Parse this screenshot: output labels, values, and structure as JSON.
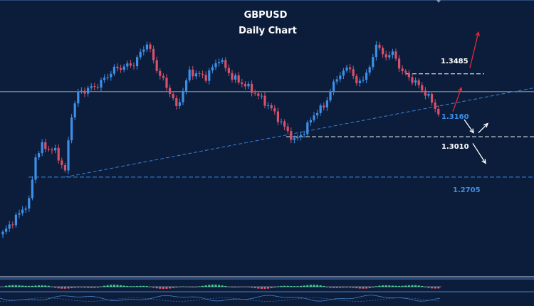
{
  "colors": {
    "background": "#0b1d3a",
    "bull_candle": "#3d8fe8",
    "bear_candle": "#d9506b",
    "trendline": "#3a80d6",
    "level_white": "#ffffff",
    "level_blue": "#3d8fe8",
    "arrow_red": "#e02a3a",
    "arrow_white": "#ffffff",
    "oscillator_green": "#1fd67a",
    "oscillator_red": "#d9506b",
    "panel_line": "#4a7fc8"
  },
  "chart_data": {
    "type": "candlestick",
    "title": "GBPUSD",
    "subtitle": "Daily Chart",
    "ylim": [
      1.2,
      1.4
    ],
    "y_axis_labels_shown": false,
    "levels": [
      {
        "label": "1.3485",
        "value": 1.3485,
        "color": "#ffffff",
        "style": "dashed"
      },
      {
        "label": "1.3160",
        "value": 1.316,
        "color": "#3d8fe8",
        "style": "none"
      },
      {
        "label": "1.3010",
        "value": 1.301,
        "color": "#ffffff",
        "style": "dashed"
      },
      {
        "label": "1.2705",
        "value": 1.2705,
        "color": "#3d8fe8",
        "style": "dashed"
      }
    ],
    "horizontal_reference": {
      "value": 1.335,
      "color": "#c8d0dc"
    },
    "trendline": {
      "from_index": 19,
      "from_value": 1.2705,
      "to_index": 156,
      "to_value": 1.335
    },
    "scenario_arrows": [
      {
        "direction": "up",
        "color": "#e02a3a",
        "from_value": 1.32,
        "to_value": 1.338
      },
      {
        "direction": "up",
        "color": "#e02a3a",
        "from_value": 1.353,
        "to_value": 1.38
      },
      {
        "direction": "down",
        "color": "#ffffff",
        "from_value": 1.314,
        "to_value": 1.304
      },
      {
        "direction": "up",
        "color": "#ffffff",
        "from_value": 1.304,
        "to_value": 1.311
      },
      {
        "direction": "down",
        "color": "#ffffff",
        "from_value": 1.296,
        "to_value": 1.281
      }
    ],
    "close_anchors": [
      [
        0,
        1.228
      ],
      [
        4,
        1.24
      ],
      [
        8,
        1.252
      ],
      [
        10,
        1.286
      ],
      [
        12,
        1.294
      ],
      [
        16,
        1.29
      ],
      [
        19,
        1.275
      ],
      [
        21,
        1.318
      ],
      [
        23,
        1.334
      ],
      [
        29,
        1.34
      ],
      [
        34,
        1.352
      ],
      [
        40,
        1.356
      ],
      [
        44,
        1.372
      ],
      [
        47,
        1.352
      ],
      [
        52,
        1.33
      ],
      [
        53,
        1.322
      ],
      [
        57,
        1.35
      ],
      [
        62,
        1.346
      ],
      [
        66,
        1.36
      ],
      [
        70,
        1.346
      ],
      [
        74,
        1.34
      ],
      [
        78,
        1.332
      ],
      [
        82,
        1.322
      ],
      [
        86,
        1.308
      ],
      [
        89,
        1.298
      ],
      [
        92,
        1.305
      ],
      [
        95,
        1.318
      ],
      [
        98,
        1.324
      ],
      [
        102,
        1.346
      ],
      [
        106,
        1.354
      ],
      [
        108,
        1.34
      ],
      [
        112,
        1.352
      ],
      [
        114,
        1.372
      ],
      [
        116,
        1.362
      ],
      [
        119,
        1.364
      ],
      [
        122,
        1.35
      ],
      [
        126,
        1.342
      ],
      [
        130,
        1.331
      ],
      [
        133,
        1.319
      ]
    ],
    "candle_count": 134
  }
}
